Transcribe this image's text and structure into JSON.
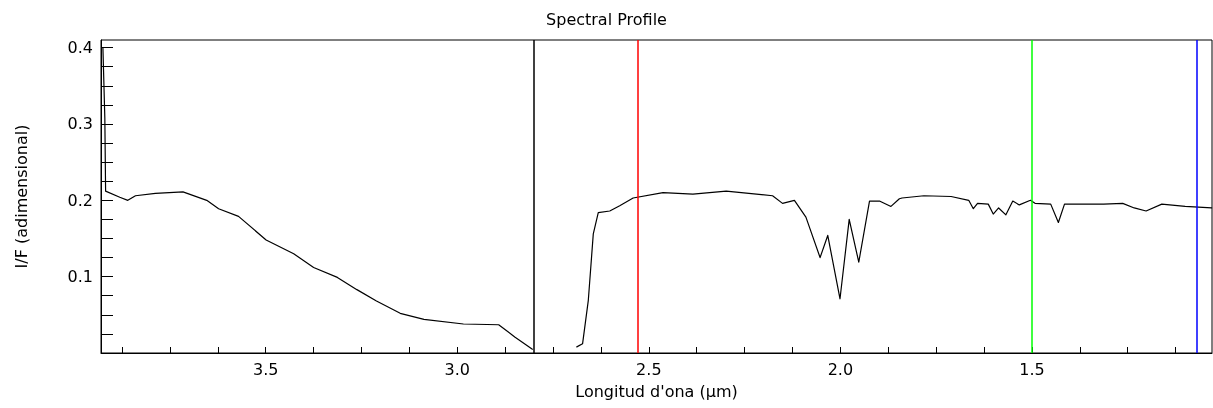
{
  "chart_data": {
    "type": "line",
    "title": "Spectral Profile",
    "xlabel": "Longitud d'ona (μm)",
    "ylabel": "I/F (adimensional)",
    "x": [
      3.925,
      3.92,
      3.918,
      3.881,
      3.86,
      3.84,
      3.788,
      3.716,
      3.654,
      3.623,
      3.571,
      3.499,
      3.427,
      3.375,
      3.313,
      3.262,
      3.211,
      3.149,
      3.087,
      2.984,
      2.892,
      2.85,
      2.804,
      2.75,
      2.688,
      2.673,
      2.658,
      2.645,
      2.632,
      2.602,
      2.576,
      2.541,
      2.463,
      2.385,
      2.298,
      2.177,
      2.151,
      2.12,
      2.09,
      2.053,
      2.033,
      2.001,
      1.977,
      1.952,
      1.924,
      1.898,
      1.868,
      1.846,
      1.839,
      1.782,
      1.711,
      1.665,
      1.653,
      1.642,
      1.614,
      1.601,
      1.587,
      1.568,
      1.55,
      1.533,
      1.504,
      1.492,
      1.451,
      1.431,
      1.415,
      1.313,
      1.263,
      1.233,
      1.202,
      1.161,
      1.1,
      1.031
    ],
    "series": [
      {
        "color": "#000000",
        "values": [
          0.4,
          0.308,
          0.212,
          0.204,
          0.2,
          0.206,
          0.209,
          0.211,
          0.2,
          0.189,
          0.179,
          0.148,
          0.13,
          0.112,
          0.099,
          0.083,
          0.068,
          0.052,
          0.044,
          0.038,
          0.037,
          0.021,
          0.005,
          null,
          0.008,
          0.012,
          0.069,
          0.156,
          0.184,
          0.186,
          0.193,
          0.203,
          0.21,
          0.208,
          0.212,
          0.206,
          0.196,
          0.2,
          0.178,
          0.125,
          0.154,
          0.071,
          0.175,
          0.119,
          0.199,
          0.199,
          0.192,
          0.202,
          0.203,
          0.206,
          0.205,
          0.2,
          0.189,
          0.196,
          0.195,
          0.182,
          0.19,
          0.181,
          0.199,
          0.194,
          0.2,
          0.196,
          0.195,
          0.171,
          0.195,
          0.195,
          0.196,
          0.19,
          0.186,
          0.195,
          0.192,
          0.19
        ]
      }
    ],
    "xlim": [
      3.93,
      1.03
    ],
    "xticks": [
      {
        "value": 3.875,
        "label": null
      },
      {
        "value": 3.75,
        "label": null
      },
      {
        "value": 3.625,
        "label": null
      },
      {
        "value": 3.5,
        "label": "3.5"
      },
      {
        "value": 3.375,
        "label": null
      },
      {
        "value": 3.25,
        "label": null
      },
      {
        "value": 3.125,
        "label": null
      },
      {
        "value": 3,
        "label": "3.0"
      },
      {
        "value": 2.875,
        "label": null
      },
      {
        "value": 2.75,
        "label": null
      },
      {
        "value": 2.625,
        "label": null
      },
      {
        "value": 2.5,
        "label": "2.5"
      },
      {
        "value": 2.375,
        "label": null
      },
      {
        "value": 2.25,
        "label": null
      },
      {
        "value": 2.125,
        "label": null
      },
      {
        "value": 2,
        "label": "2.0"
      },
      {
        "value": 1.875,
        "label": null
      },
      {
        "value": 1.75,
        "label": null
      },
      {
        "value": 1.625,
        "label": null
      },
      {
        "value": 1.5,
        "label": "1.5"
      },
      {
        "value": 1.375,
        "label": null
      },
      {
        "value": 1.25,
        "label": null
      },
      {
        "value": 1.125,
        "label": null
      }
    ],
    "ylim": [
      0,
      0.41
    ],
    "yticks": [
      {
        "value": 0.025,
        "label": null
      },
      {
        "value": 0.05,
        "label": null
      },
      {
        "value": 0.075,
        "label": null
      },
      0.1,
      {
        "value": 0.125,
        "label": null
      },
      {
        "value": 0.15,
        "label": null
      },
      {
        "value": 0.175,
        "label": null
      },
      0.2,
      {
        "value": 0.225,
        "label": null
      },
      {
        "value": 0.25,
        "label": null
      },
      {
        "value": 0.275,
        "label": null
      },
      0.3,
      {
        "value": 0.325,
        "label": null
      },
      {
        "value": 0.35,
        "label": null
      },
      {
        "value": 0.375,
        "label": null
      },
      0.4
    ],
    "ref_lines": [
      {
        "axis": "x",
        "value": 2.8,
        "color": "#000000"
      },
      {
        "axis": "x",
        "value": 2.53,
        "color": "#ff0000"
      },
      {
        "axis": "x",
        "value": 1.5,
        "color": "#00ff00"
      },
      {
        "axis": "x",
        "value": 1.07,
        "color": "#0000ff"
      }
    ],
    "grid": false,
    "marker": "none",
    "line_style": "solid"
  }
}
